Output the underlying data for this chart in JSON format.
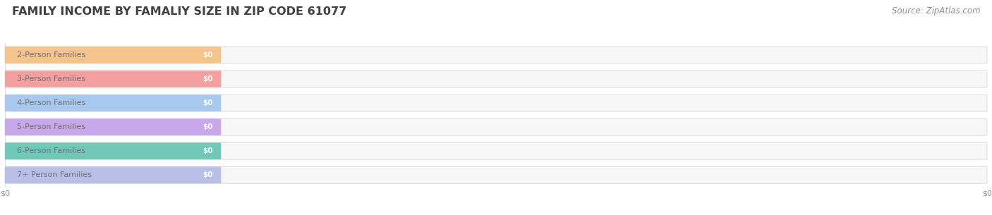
{
  "title": "FAMILY INCOME BY FAMALIY SIZE IN ZIP CODE 61077",
  "source_text": "Source: ZipAtlas.com",
  "categories": [
    "2-Person Families",
    "3-Person Families",
    "4-Person Families",
    "5-Person Families",
    "6-Person Families",
    "7+ Person Families"
  ],
  "values": [
    0,
    0,
    0,
    0,
    0,
    0
  ],
  "bar_colors": [
    "#F5C48A",
    "#F5A0A0",
    "#A8C8F0",
    "#C8A8E8",
    "#70C8B8",
    "#B8C0E8"
  ],
  "label_text_color": "#707070",
  "value_label_color": "#ffffff",
  "title_color": "#404040",
  "source_color": "#909090",
  "bg_color": "#ffffff",
  "bar_bg_color": "#f0f0f0",
  "bar_border_color": "#e0e0e0",
  "fig_width": 14.06,
  "fig_height": 3.05,
  "title_fontsize": 11.5,
  "label_fontsize": 8.0,
  "value_fontsize": 7.5,
  "source_fontsize": 8.5,
  "dpi": 100
}
